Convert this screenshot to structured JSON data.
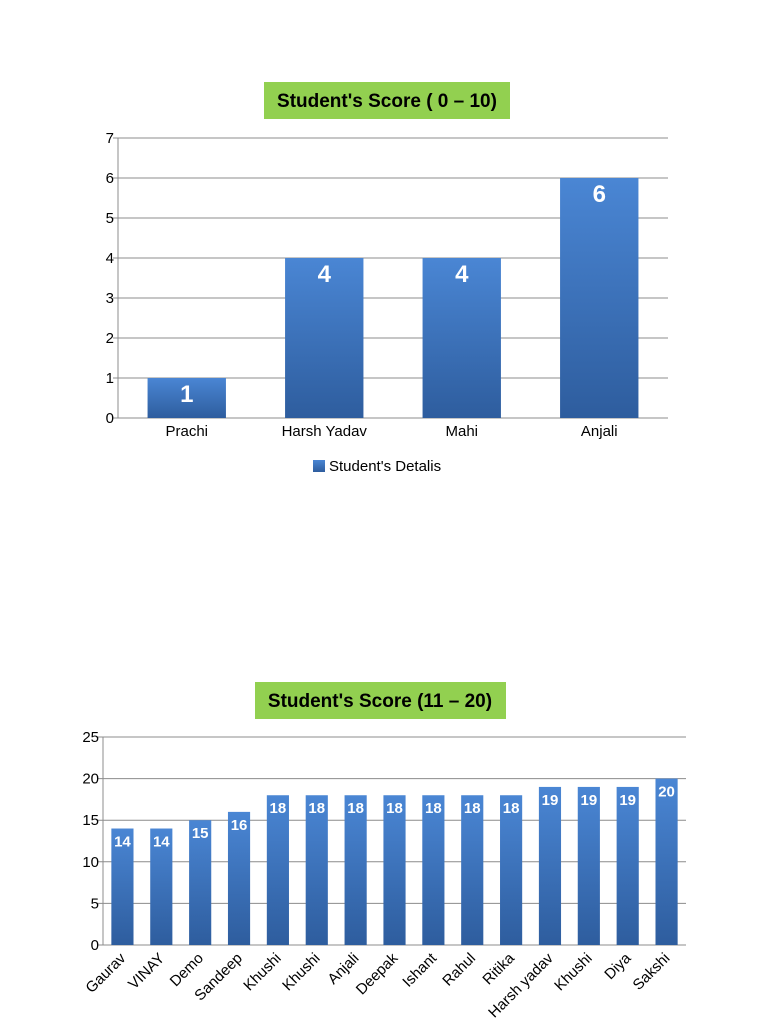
{
  "chart_data": [
    {
      "type": "bar",
      "title": "Student's Score ( 0 – 10)",
      "categories": [
        "Prachi",
        "Harsh Yadav",
        "Mahi",
        "Anjali"
      ],
      "series": [
        {
          "name": "Student's Detalis",
          "values": [
            1,
            4,
            4,
            6
          ]
        }
      ],
      "data_labels": [
        "1",
        "4",
        "4",
        "6"
      ],
      "yticks": [
        "0",
        "1",
        "2",
        "3",
        "4",
        "5",
        "6",
        "7"
      ],
      "ylim": [
        0,
        7
      ],
      "grid": true,
      "legend": "bottom",
      "bar_color": "#3a6fb5"
    },
    {
      "type": "bar",
      "title": "Student's Score (11 – 20)",
      "categories": [
        "Gaurav",
        "VINAY",
        "Demo",
        "Sandeep",
        "Khushi",
        "Khushi",
        "Anjali",
        "Deepak",
        "Ishant",
        "Rahul",
        "Ritika",
        "Harsh yadav",
        "Khushi",
        "Diya",
        "Sakshi"
      ],
      "series": [
        {
          "values": [
            14,
            14,
            15,
            16,
            18,
            18,
            18,
            18,
            18,
            18,
            18,
            19,
            19,
            19,
            20
          ]
        }
      ],
      "data_labels": [
        "14",
        "14",
        "15",
        "16",
        "18",
        "18",
        "18",
        "18",
        "18",
        "18",
        "18",
        "19",
        "19",
        "19",
        "20"
      ],
      "yticks": [
        "0",
        "5",
        "10",
        "15",
        "20",
        "25"
      ],
      "ylim": [
        0,
        25
      ],
      "grid": true,
      "bar_color": "#3a6fb5"
    }
  ]
}
